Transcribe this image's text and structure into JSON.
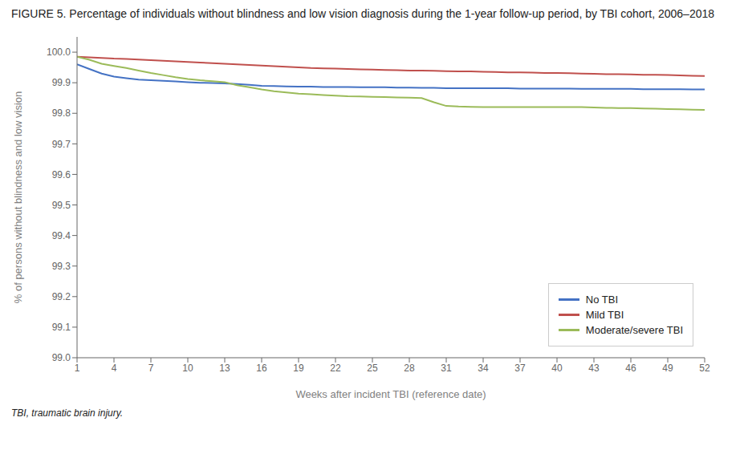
{
  "chart_data": {
    "type": "line",
    "title": "FIGURE 5. Percentage of individuals without blindness and low vision diagnosis during the 1-year follow-up period, by TBI cohort, 2006–2018",
    "x_label": "Weeks after incident TBI (reference date)",
    "y_label": "% of persons without blindness and low vision",
    "annotations": [
      "TBI, traumatic brain injury."
    ],
    "x": [
      1,
      2,
      3,
      4,
      5,
      6,
      7,
      8,
      9,
      10,
      11,
      12,
      13,
      14,
      15,
      16,
      17,
      18,
      19,
      20,
      21,
      22,
      23,
      24,
      25,
      26,
      27,
      28,
      29,
      30,
      31,
      32,
      33,
      34,
      35,
      36,
      37,
      38,
      39,
      40,
      41,
      42,
      43,
      44,
      45,
      46,
      47,
      48,
      49,
      50,
      51,
      52
    ],
    "series": [
      {
        "name": "No TBI",
        "color": "#4472C4",
        "values": [
          99.96,
          99.945,
          99.93,
          99.92,
          99.915,
          99.91,
          99.908,
          99.906,
          99.904,
          99.902,
          99.9,
          99.899,
          99.898,
          99.896,
          99.893,
          99.89,
          99.889,
          99.888,
          99.887,
          99.887,
          99.886,
          99.886,
          99.886,
          99.885,
          99.885,
          99.885,
          99.884,
          99.884,
          99.883,
          99.883,
          99.882,
          99.882,
          99.882,
          99.882,
          99.882,
          99.882,
          99.881,
          99.881,
          99.881,
          99.881,
          99.881,
          99.88,
          99.88,
          99.88,
          99.88,
          99.88,
          99.879,
          99.879,
          99.879,
          99.879,
          99.878,
          99.878
        ]
      },
      {
        "name": "Mild TBI",
        "color": "#C0504D",
        "values": [
          99.985,
          99.983,
          99.981,
          99.979,
          99.978,
          99.976,
          99.974,
          99.972,
          99.97,
          99.968,
          99.966,
          99.964,
          99.962,
          99.96,
          99.958,
          99.956,
          99.954,
          99.952,
          99.95,
          99.948,
          99.947,
          99.946,
          99.945,
          99.944,
          99.943,
          99.942,
          99.941,
          99.94,
          99.94,
          99.939,
          99.938,
          99.937,
          99.937,
          99.936,
          99.935,
          99.934,
          99.934,
          99.933,
          99.932,
          99.932,
          99.931,
          99.93,
          99.929,
          99.928,
          99.928,
          99.927,
          99.926,
          99.926,
          99.925,
          99.924,
          99.923,
          99.922
        ]
      },
      {
        "name": "Moderate/severe TBI",
        "color": "#9BBB59",
        "values": [
          99.985,
          99.975,
          99.962,
          99.955,
          99.948,
          99.94,
          99.932,
          99.925,
          99.918,
          99.912,
          99.908,
          99.905,
          99.902,
          99.892,
          99.885,
          99.878,
          99.872,
          99.868,
          99.864,
          99.862,
          99.86,
          99.858,
          99.856,
          99.855,
          99.854,
          99.853,
          99.852,
          99.851,
          99.85,
          99.836,
          99.824,
          99.822,
          99.821,
          99.82,
          99.82,
          99.82,
          99.82,
          99.82,
          99.82,
          99.82,
          99.82,
          99.82,
          99.819,
          99.818,
          99.817,
          99.817,
          99.816,
          99.815,
          99.814,
          99.813,
          99.812,
          99.811
        ]
      }
    ],
    "xlim": [
      1,
      52
    ],
    "xticks": [
      1,
      4,
      7,
      10,
      13,
      16,
      19,
      22,
      25,
      28,
      31,
      34,
      37,
      40,
      43,
      46,
      49,
      52
    ],
    "ylim": [
      99.0,
      100.05
    ],
    "yticks": [
      {
        "value": 99.0,
        "label": "99.0"
      },
      99.1,
      99.2,
      99.3,
      99.4,
      99.5,
      99.6,
      99.7,
      99.8,
      99.9,
      {
        "value": 100.0,
        "label": "100.0"
      }
    ],
    "grid": false,
    "legend": "lower right"
  }
}
